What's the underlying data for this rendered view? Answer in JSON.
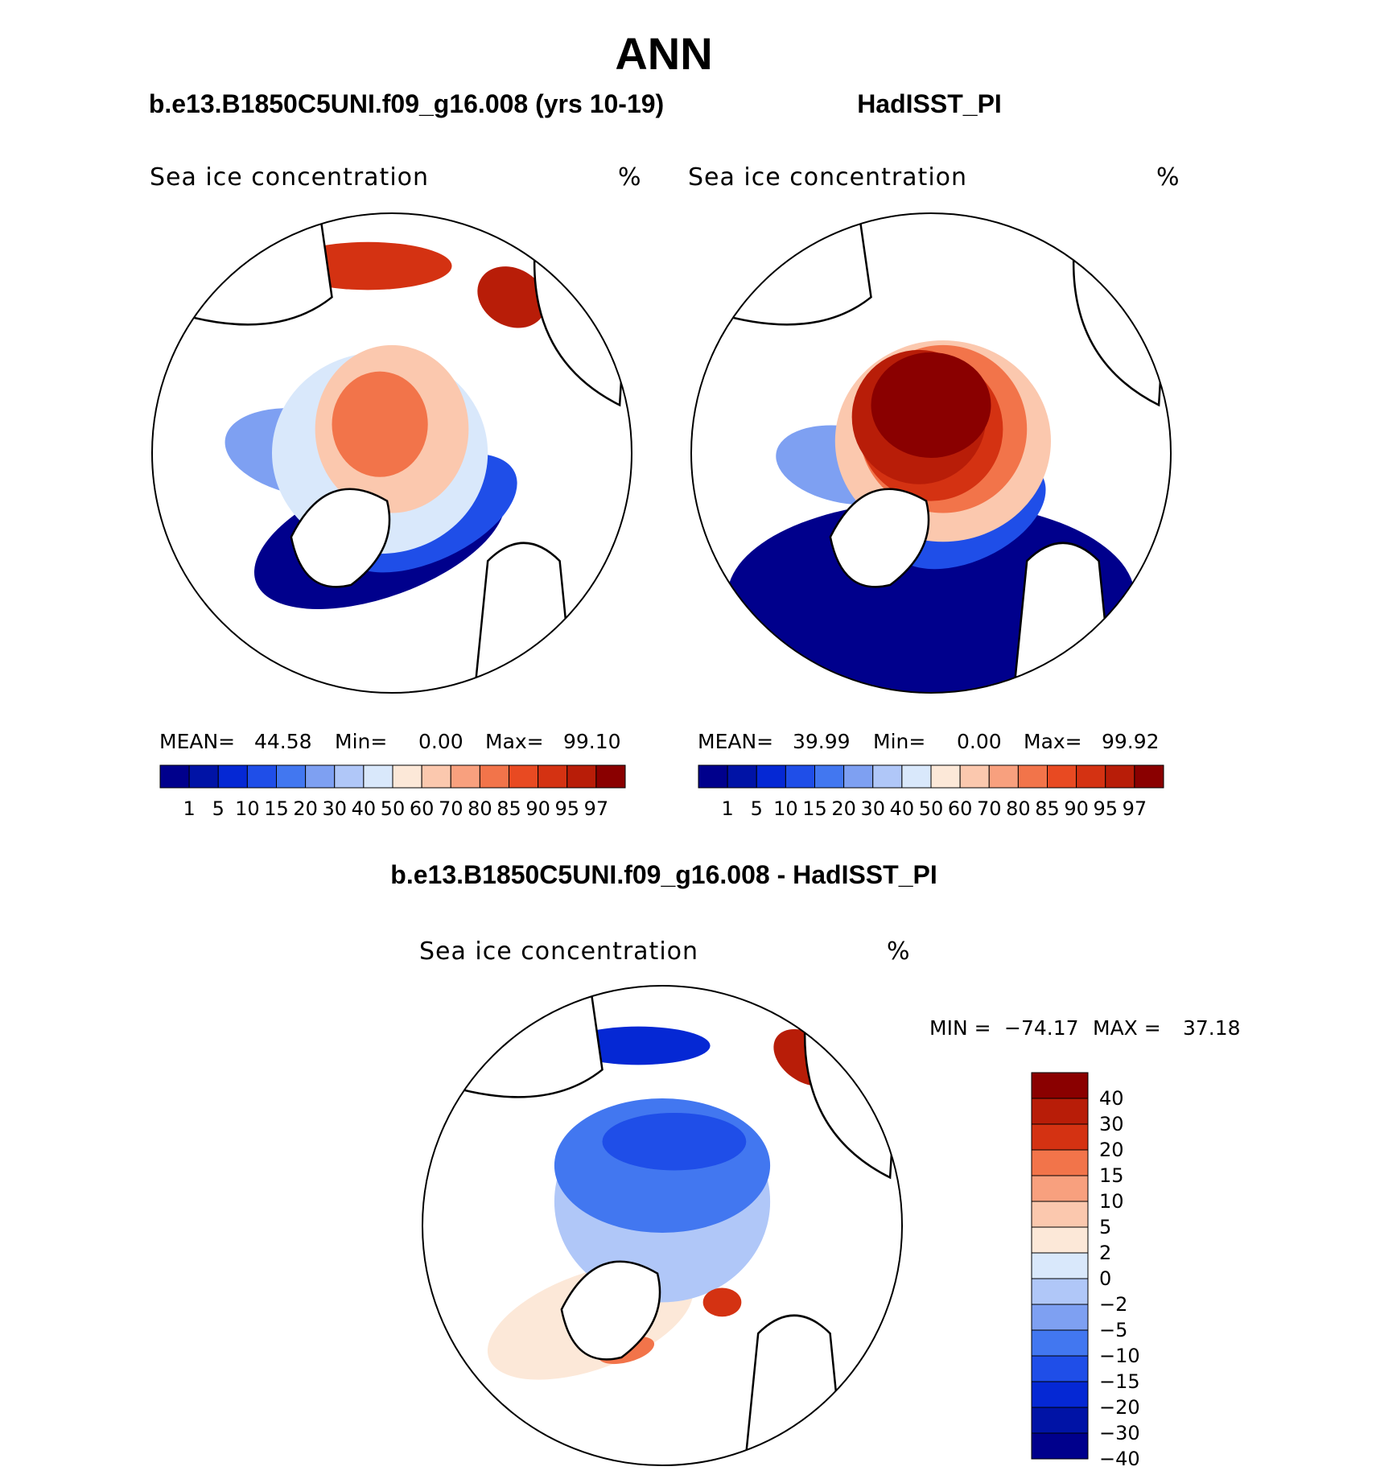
{
  "figure_title": "ANN",
  "chart_data": [
    {
      "type": "heatmap",
      "subtype": "polar-stereographic-map",
      "title": "b.e13.B1850C5UNI.f09_g16.008 (yrs 10-19)",
      "variable": "Sea ice concentration",
      "units": "%",
      "stats": {
        "mean_label": "MEAN=",
        "mean": "44.58",
        "min_label": "Min=",
        "min": "0.00",
        "max_label": "Max=",
        "max": "99.10"
      },
      "colorbar_levels": [
        "1",
        "5",
        "10",
        "15",
        "20",
        "30",
        "40",
        "50",
        "60",
        "70",
        "80",
        "85",
        "90",
        "95",
        "97"
      ],
      "colorbar_colors": [
        "#00008c",
        "#0013a6",
        "#0528d4",
        "#1f4ee8",
        "#4277f0",
        "#7ea0f2",
        "#b0c7f8",
        "#d9e8fb",
        "#fce8d8",
        "#fbc8ae",
        "#f8a07e",
        "#f2744a",
        "#e84a22",
        "#d43212",
        "#b81d08",
        "#8a0000"
      ],
      "region_colors": [
        "#00008c",
        "#1f4ee8",
        "#7ea0f2",
        "#d9e8fb",
        "#fbc8ae",
        "#f2744a",
        "#d43212",
        "#b81d08"
      ]
    },
    {
      "type": "heatmap",
      "subtype": "polar-stereographic-map",
      "title": "HadISST_PI",
      "variable": "Sea ice concentration",
      "units": "%",
      "stats": {
        "mean_label": "MEAN=",
        "mean": "39.99",
        "min_label": "Min=",
        "min": "0.00",
        "max_label": "Max=",
        "max": "99.92"
      },
      "colorbar_levels": [
        "1",
        "5",
        "10",
        "15",
        "20",
        "30",
        "40",
        "50",
        "60",
        "70",
        "80",
        "85",
        "90",
        "95",
        "97"
      ],
      "colorbar_colors": [
        "#00008c",
        "#0013a6",
        "#0528d4",
        "#1f4ee8",
        "#4277f0",
        "#7ea0f2",
        "#b0c7f8",
        "#d9e8fb",
        "#fce8d8",
        "#fbc8ae",
        "#f8a07e",
        "#f2744a",
        "#e84a22",
        "#d43212",
        "#b81d08",
        "#8a0000"
      ],
      "region_colors": [
        "#00008c",
        "#1f4ee8",
        "#7ea0f2",
        "#fbc8ae",
        "#f2744a",
        "#d43212",
        "#b81d08",
        "#8a0000"
      ]
    },
    {
      "type": "heatmap",
      "subtype": "polar-stereographic-map-difference",
      "title": "b.e13.B1850C5UNI.f09_g16.008 - HadISST_PI",
      "variable": "Sea ice concentration",
      "units": "%",
      "stats": {
        "min_label": "MIN =",
        "min": "−74.17",
        "max_label": "MAX =",
        "max": "37.18"
      },
      "colorbar_levels": [
        "40",
        "30",
        "20",
        "15",
        "10",
        "5",
        "2",
        "0",
        "−2",
        "−5",
        "−10",
        "−15",
        "−20",
        "−30",
        "−40"
      ],
      "colorbar_colors": [
        "#8a0000",
        "#b81d08",
        "#d43212",
        "#f2744a",
        "#f8a07e",
        "#fbc8ae",
        "#fce8d8",
        "#d9e8fb",
        "#b0c7f8",
        "#7ea0f2",
        "#4277f0",
        "#1f4ee8",
        "#0528d4",
        "#0013a6",
        "#00008c"
      ],
      "region_colors": [
        "#fce8d8",
        "#b0c7f8",
        "#4277f0",
        "#1f4ee8",
        "#0528d4",
        "#d43212",
        "#f2744a",
        "#b81d08"
      ]
    }
  ]
}
